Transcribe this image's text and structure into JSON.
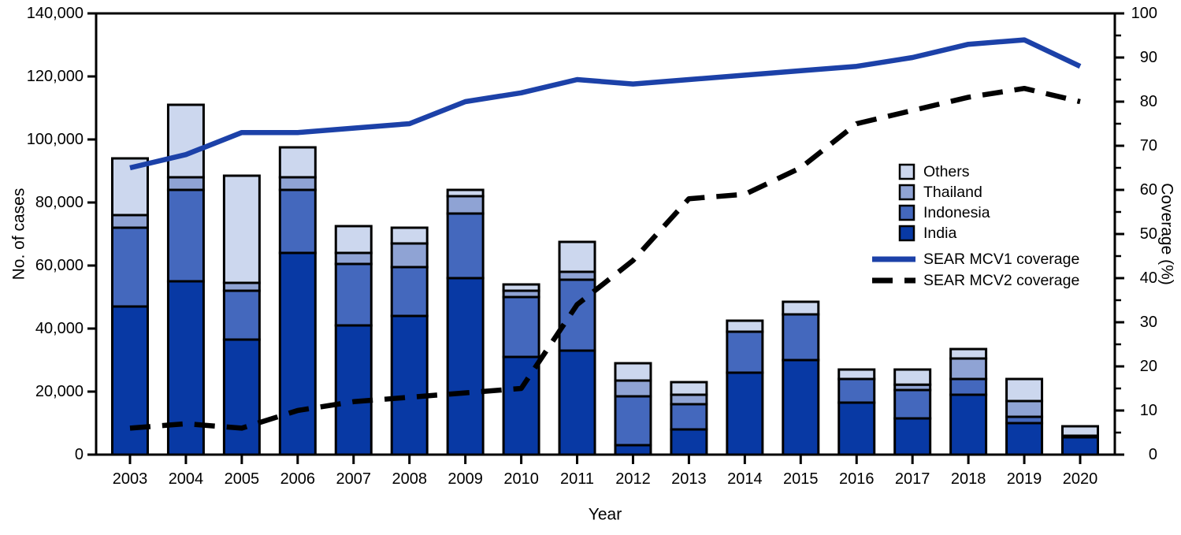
{
  "chart_data": {
    "type": "combo-stacked-bar-line",
    "categories": [
      "2003",
      "2004",
      "2005",
      "2006",
      "2007",
      "2008",
      "2009",
      "2010",
      "2011",
      "2012",
      "2013",
      "2014",
      "2015",
      "2016",
      "2017",
      "2018",
      "2019",
      "2020"
    ],
    "bar_series": [
      {
        "name": "India",
        "color": "#0839a4",
        "values": [
          47000,
          55000,
          36500,
          64000,
          41000,
          44000,
          56000,
          31000,
          33000,
          3000,
          8000,
          26000,
          30000,
          16500,
          11500,
          19000,
          10000,
          5500
        ]
      },
      {
        "name": "Indonesia",
        "color": "#4468bd",
        "values": [
          25000,
          29000,
          15500,
          20000,
          19500,
          15500,
          20500,
          19000,
          22500,
          15500,
          8000,
          13000,
          14500,
          7500,
          9000,
          5000,
          2000,
          300
        ]
      },
      {
        "name": "Thailand",
        "color": "#8fa3d4",
        "values": [
          4000,
          4000,
          2500,
          4000,
          3500,
          7500,
          5500,
          2000,
          2500,
          5000,
          3000,
          0,
          0,
          0,
          1700,
          6500,
          5000,
          200
        ]
      },
      {
        "name": "Others",
        "color": "#ccd7ee",
        "values": [
          18000,
          23000,
          34000,
          9500,
          8500,
          5000,
          2000,
          2000,
          9500,
          5500,
          4000,
          3500,
          4000,
          3000,
          4800,
          3000,
          7000,
          3000
        ]
      }
    ],
    "line_series": [
      {
        "name": "SEAR MCV1 coverage",
        "style": "solid",
        "color": "#1c41a8",
        "values": [
          65,
          68,
          73,
          73,
          74,
          75,
          80,
          82,
          85,
          84,
          85,
          86,
          87,
          88,
          90,
          93,
          94,
          88
        ]
      },
      {
        "name": "SEAR MCV2 coverage",
        "style": "dashed",
        "color": "#000000",
        "values": [
          6,
          7,
          6,
          10,
          12,
          13,
          14,
          15,
          34,
          44,
          58,
          59,
          65,
          75,
          78,
          81,
          83,
          80
        ]
      }
    ],
    "xlabel": "Year",
    "ylabel_left": "No. of cases",
    "ylabel_right": "Coverage (%)",
    "y_left_max": 140000,
    "y_left_tick_step": 20000,
    "y_left_tick_labels": [
      "0",
      "20,000",
      "40,000",
      "60,000",
      "80,000",
      "100,000",
      "120,000",
      "140,000"
    ],
    "y_right_max": 100,
    "y_right_tick_step": 10,
    "y_right_minor_step": 5,
    "y_right_tick_labels": [
      "0",
      "10",
      "20",
      "30",
      "40",
      "50",
      "60",
      "70",
      "80",
      "90",
      "100"
    ],
    "legend_order": [
      "Others",
      "Thailand",
      "Indonesia",
      "India",
      "SEAR MCV1 coverage",
      "SEAR MCV2 coverage"
    ],
    "grid": false,
    "legend_position": "inside-right",
    "frame_color": "#000000",
    "background_color": "#ffffff"
  }
}
